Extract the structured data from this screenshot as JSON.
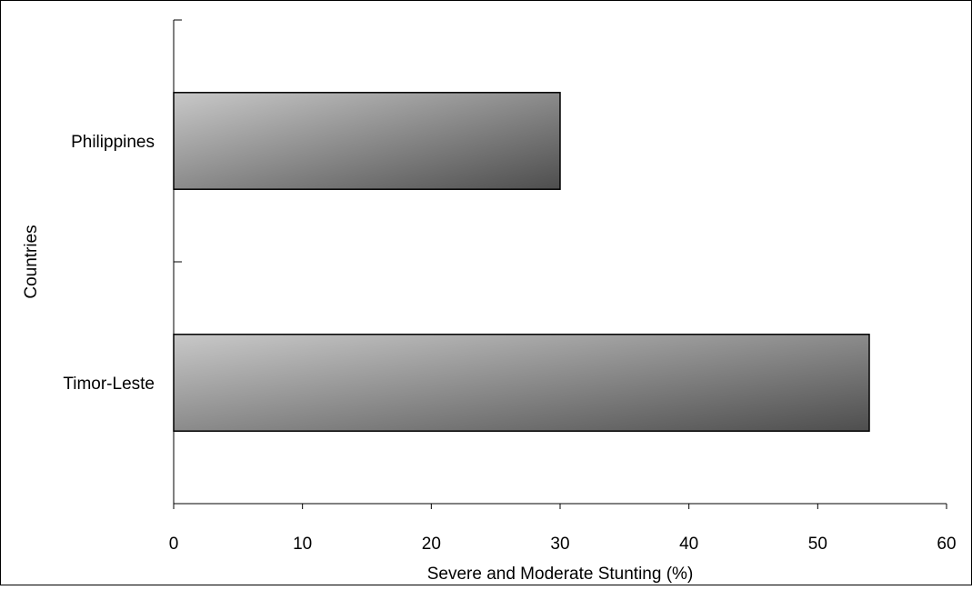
{
  "chart_data": {
    "type": "bar",
    "orientation": "horizontal",
    "categories": [
      "Philippines",
      "Timor-Leste"
    ],
    "values": [
      30,
      54
    ],
    "xlabel": "Severe and Moderate Stunting (%)",
    "ylabel": "Countries",
    "xlim": [
      0,
      60
    ],
    "xticks": [
      0,
      10,
      20,
      30,
      40,
      50,
      60
    ],
    "xtick_labels": [
      "0",
      "10",
      "20",
      "30",
      "40",
      "50",
      "60"
    ],
    "grid": false,
    "legend": "none",
    "bar_fill": {
      "light": "#c8c8c8",
      "dark": "#4e4e4e"
    },
    "bar_stroke": "#000000"
  }
}
